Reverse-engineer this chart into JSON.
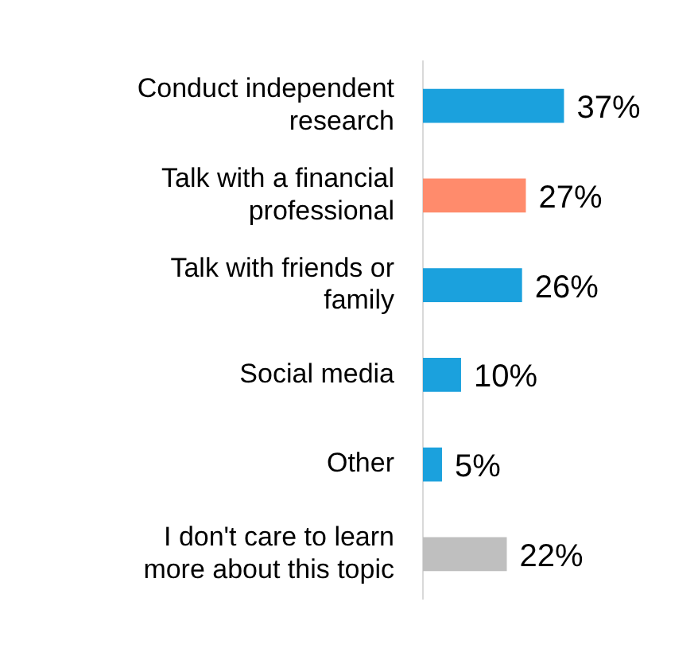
{
  "chart_data": {
    "type": "bar",
    "orientation": "horizontal",
    "categories": [
      "Conduct independent research",
      "Talk with a financial professional",
      "Talk with friends or family",
      "Social media",
      "Other",
      "I don't care to learn more about this topic"
    ],
    "values": [
      37,
      27,
      26,
      10,
      5,
      22
    ],
    "colors": [
      "#1ba1dd",
      "#ff8b6c",
      "#1ba1dd",
      "#1ba1dd",
      "#1ba1dd",
      "#bfbfbf"
    ],
    "value_labels": [
      "37%",
      "27%",
      "26%",
      "10%",
      "5%",
      "22%"
    ],
    "legend": false
  }
}
